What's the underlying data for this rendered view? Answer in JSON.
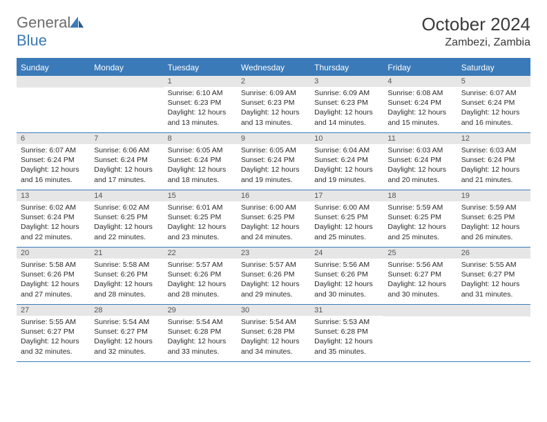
{
  "brand": {
    "part1": "General",
    "part2": "Blue"
  },
  "title": "October 2024",
  "location": "Zambezi, Zambia",
  "colors": {
    "header_bg": "#3a7ab8",
    "header_text": "#ffffff",
    "daynum_bg": "#e6e6e6",
    "border": "#3a7ab8",
    "text": "#2a2a2a",
    "logo_gray": "#6b6b6b",
    "logo_blue": "#3a7ab8"
  },
  "day_names": [
    "Sunday",
    "Monday",
    "Tuesday",
    "Wednesday",
    "Thursday",
    "Friday",
    "Saturday"
  ],
  "weeks": [
    [
      null,
      null,
      {
        "n": "1",
        "sr": "6:10 AM",
        "ss": "6:23 PM",
        "dl": "12 hours and 13 minutes."
      },
      {
        "n": "2",
        "sr": "6:09 AM",
        "ss": "6:23 PM",
        "dl": "12 hours and 13 minutes."
      },
      {
        "n": "3",
        "sr": "6:09 AM",
        "ss": "6:23 PM",
        "dl": "12 hours and 14 minutes."
      },
      {
        "n": "4",
        "sr": "6:08 AM",
        "ss": "6:24 PM",
        "dl": "12 hours and 15 minutes."
      },
      {
        "n": "5",
        "sr": "6:07 AM",
        "ss": "6:24 PM",
        "dl": "12 hours and 16 minutes."
      }
    ],
    [
      {
        "n": "6",
        "sr": "6:07 AM",
        "ss": "6:24 PM",
        "dl": "12 hours and 16 minutes."
      },
      {
        "n": "7",
        "sr": "6:06 AM",
        "ss": "6:24 PM",
        "dl": "12 hours and 17 minutes."
      },
      {
        "n": "8",
        "sr": "6:05 AM",
        "ss": "6:24 PM",
        "dl": "12 hours and 18 minutes."
      },
      {
        "n": "9",
        "sr": "6:05 AM",
        "ss": "6:24 PM",
        "dl": "12 hours and 19 minutes."
      },
      {
        "n": "10",
        "sr": "6:04 AM",
        "ss": "6:24 PM",
        "dl": "12 hours and 19 minutes."
      },
      {
        "n": "11",
        "sr": "6:03 AM",
        "ss": "6:24 PM",
        "dl": "12 hours and 20 minutes."
      },
      {
        "n": "12",
        "sr": "6:03 AM",
        "ss": "6:24 PM",
        "dl": "12 hours and 21 minutes."
      }
    ],
    [
      {
        "n": "13",
        "sr": "6:02 AM",
        "ss": "6:24 PM",
        "dl": "12 hours and 22 minutes."
      },
      {
        "n": "14",
        "sr": "6:02 AM",
        "ss": "6:25 PM",
        "dl": "12 hours and 22 minutes."
      },
      {
        "n": "15",
        "sr": "6:01 AM",
        "ss": "6:25 PM",
        "dl": "12 hours and 23 minutes."
      },
      {
        "n": "16",
        "sr": "6:00 AM",
        "ss": "6:25 PM",
        "dl": "12 hours and 24 minutes."
      },
      {
        "n": "17",
        "sr": "6:00 AM",
        "ss": "6:25 PM",
        "dl": "12 hours and 25 minutes."
      },
      {
        "n": "18",
        "sr": "5:59 AM",
        "ss": "6:25 PM",
        "dl": "12 hours and 25 minutes."
      },
      {
        "n": "19",
        "sr": "5:59 AM",
        "ss": "6:25 PM",
        "dl": "12 hours and 26 minutes."
      }
    ],
    [
      {
        "n": "20",
        "sr": "5:58 AM",
        "ss": "6:26 PM",
        "dl": "12 hours and 27 minutes."
      },
      {
        "n": "21",
        "sr": "5:58 AM",
        "ss": "6:26 PM",
        "dl": "12 hours and 28 minutes."
      },
      {
        "n": "22",
        "sr": "5:57 AM",
        "ss": "6:26 PM",
        "dl": "12 hours and 28 minutes."
      },
      {
        "n": "23",
        "sr": "5:57 AM",
        "ss": "6:26 PM",
        "dl": "12 hours and 29 minutes."
      },
      {
        "n": "24",
        "sr": "5:56 AM",
        "ss": "6:26 PM",
        "dl": "12 hours and 30 minutes."
      },
      {
        "n": "25",
        "sr": "5:56 AM",
        "ss": "6:27 PM",
        "dl": "12 hours and 30 minutes."
      },
      {
        "n": "26",
        "sr": "5:55 AM",
        "ss": "6:27 PM",
        "dl": "12 hours and 31 minutes."
      }
    ],
    [
      {
        "n": "27",
        "sr": "5:55 AM",
        "ss": "6:27 PM",
        "dl": "12 hours and 32 minutes."
      },
      {
        "n": "28",
        "sr": "5:54 AM",
        "ss": "6:27 PM",
        "dl": "12 hours and 32 minutes."
      },
      {
        "n": "29",
        "sr": "5:54 AM",
        "ss": "6:28 PM",
        "dl": "12 hours and 33 minutes."
      },
      {
        "n": "30",
        "sr": "5:54 AM",
        "ss": "6:28 PM",
        "dl": "12 hours and 34 minutes."
      },
      {
        "n": "31",
        "sr": "5:53 AM",
        "ss": "6:28 PM",
        "dl": "12 hours and 35 minutes."
      },
      null,
      null
    ]
  ],
  "labels": {
    "sunrise": "Sunrise:",
    "sunset": "Sunset:",
    "daylight": "Daylight:"
  }
}
